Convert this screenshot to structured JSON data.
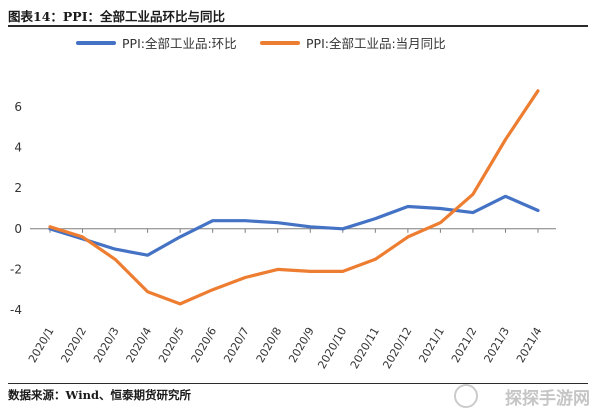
{
  "header": {
    "title": "图表14：PPI：全部工业品环比与同比"
  },
  "footer": {
    "source": "数据来源：Wind、恒泰期货研究所"
  },
  "watermark": {
    "text": "探探手游网"
  },
  "chart_data": {
    "type": "line",
    "categories": [
      "2020/1",
      "2020/2",
      "2020/3",
      "2020/4",
      "2020/5",
      "2020/6",
      "2020/7",
      "2020/8",
      "2020/9",
      "2020/10",
      "2020/11",
      "2020/12",
      "2021/1",
      "2021/2",
      "2021/3",
      "2021/4"
    ],
    "series": [
      {
        "name": "PPI:全部工业品:环比",
        "color": "#4472C4",
        "values": [
          0.0,
          -0.5,
          -1.0,
          -1.3,
          -0.4,
          0.4,
          0.4,
          0.3,
          0.1,
          0.0,
          0.5,
          1.1,
          1.0,
          0.8,
          1.6,
          0.9
        ]
      },
      {
        "name": "PPI:全部工业品:当月同比",
        "color": "#ED7D31",
        "values": [
          0.1,
          -0.4,
          -1.5,
          -3.1,
          -3.7,
          -3.0,
          -2.4,
          -2.0,
          -2.1,
          -2.1,
          -1.5,
          -0.4,
          0.3,
          1.7,
          4.4,
          6.8
        ]
      }
    ],
    "ylim": [
      -4,
      6
    ],
    "yticks": [
      -4,
      -2,
      0,
      2,
      4,
      6
    ],
    "legend": "top",
    "grid": false
  }
}
